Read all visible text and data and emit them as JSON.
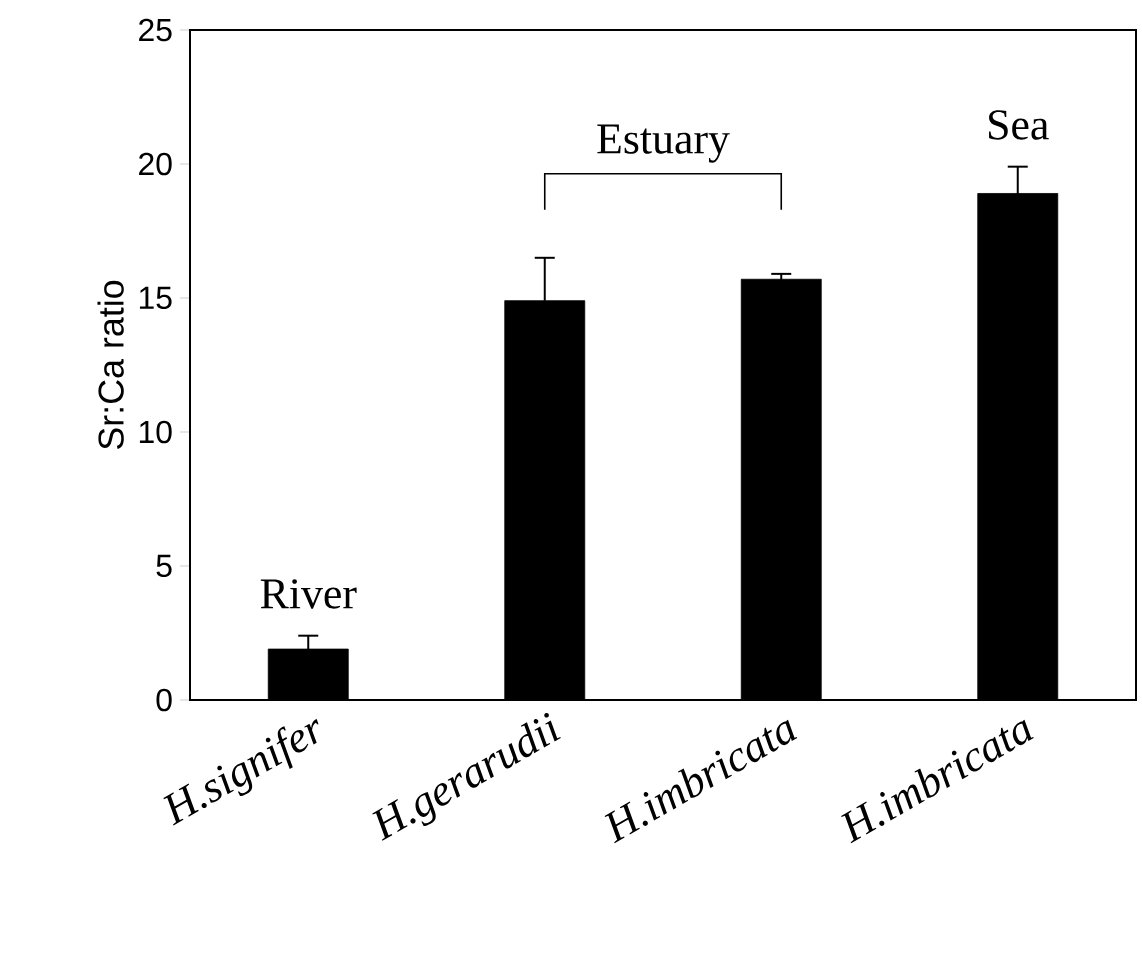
{
  "chart_data": {
    "type": "bar",
    "categories": [
      "H.signifer",
      "H.gerarudii",
      "H.imbricata",
      "H.imbricata"
    ],
    "values": [
      1.9,
      14.9,
      15.7,
      18.9
    ],
    "errors": [
      0.5,
      1.6,
      0.2,
      1.0
    ],
    "color": "#000000",
    "ylabel": "Sr:Ca ratio",
    "ylim": [
      0,
      25
    ],
    "yticks": [
      0,
      5,
      10,
      15,
      20,
      25
    ],
    "annotations": [
      "River",
      "Estuary",
      "Sea"
    ],
    "grid": false
  }
}
